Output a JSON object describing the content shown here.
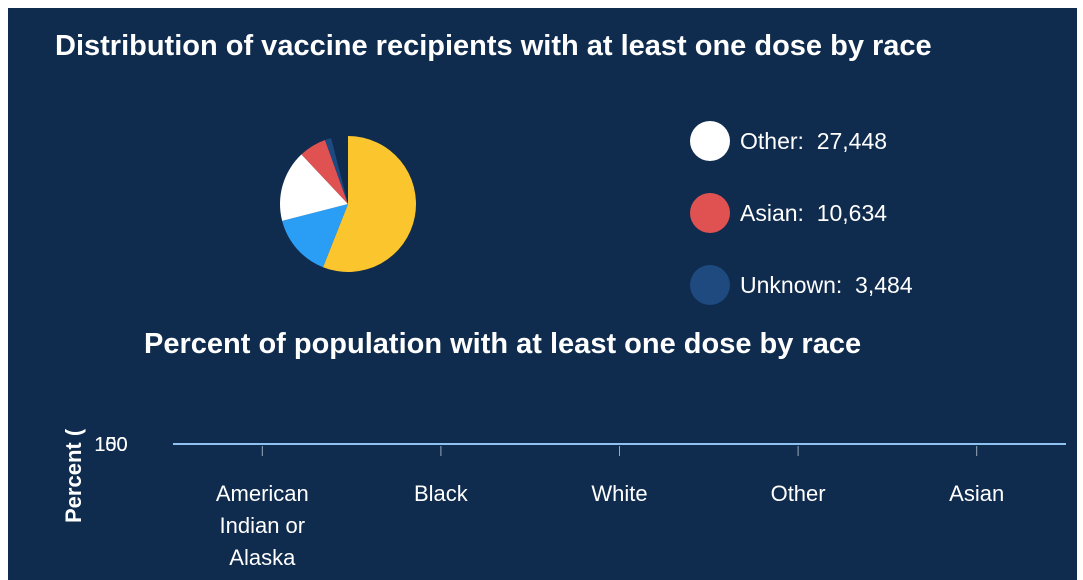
{
  "charts": [
    {
      "title": "Distribution of vaccine recipients with at least one dose by race",
      "chart_data": {
        "type": "pie",
        "slices": [
          {
            "label": "Other",
            "value": 27448,
            "value_text": "27,448",
            "color": "#ffffff"
          },
          {
            "label": "Asian",
            "value": 10634,
            "value_text": "10,634",
            "color": "#e05252"
          },
          {
            "label": "Unknown",
            "value": 3484,
            "value_text": "3,484",
            "color": "#1e4a80"
          }
        ],
        "visible_only_in_wedges": [
          {
            "color": "#fbc52e",
            "share": 0.56
          },
          {
            "color": "#2a9df4",
            "share": 0.15
          },
          {
            "color": "#ffffff",
            "share": 0.17
          },
          {
            "color": "#e05252",
            "share": 0.065
          },
          {
            "color": "#1e4a80",
            "share": 0.015
          }
        ]
      }
    },
    {
      "title": "Percent of population with at least one dose by race",
      "chart_data": {
        "type": "bar",
        "ylabel": "Percent (%)",
        "ylabel_visible": "Percent (",
        "y_ticks": [
          "100",
          "150"
        ],
        "y_tick_overlap": true,
        "categories": [
          [
            "American",
            "Indian or",
            "Alaska"
          ],
          [
            "Black"
          ],
          [
            "White"
          ],
          [
            "Other"
          ],
          [
            "Asian"
          ]
        ],
        "line_color": "#8fc2f0"
      }
    }
  ]
}
